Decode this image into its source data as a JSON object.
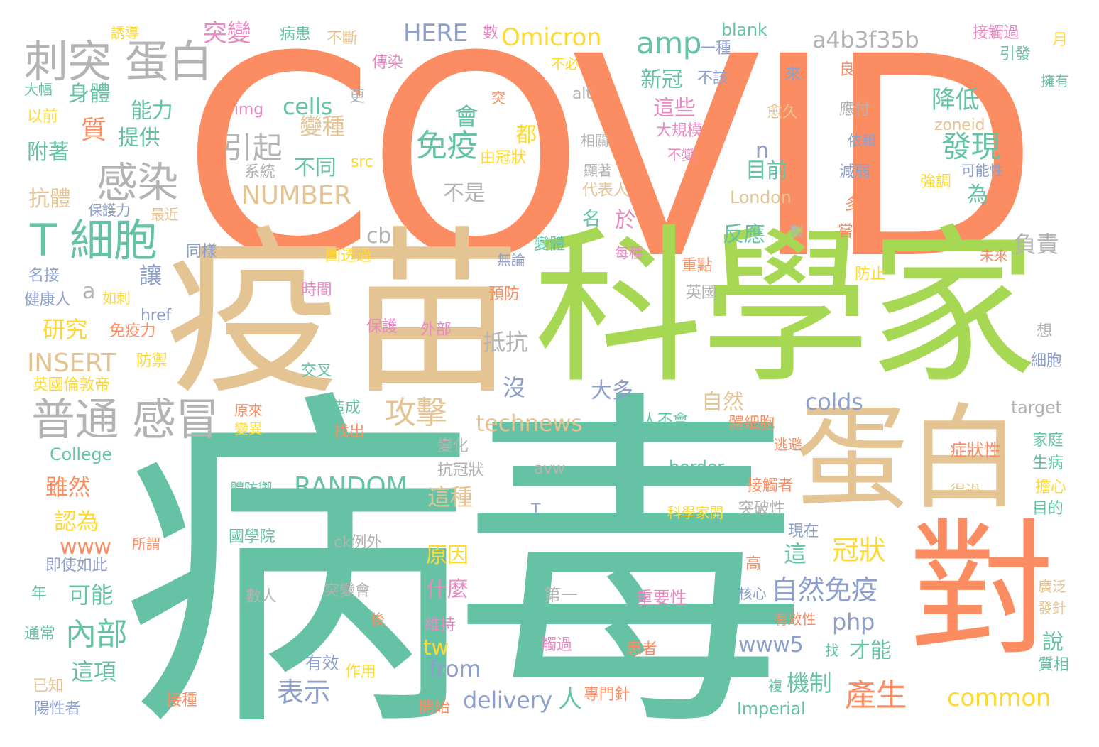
{
  "palette": {
    "orange": "#fc8d62",
    "green": "#66c2a5",
    "lime": "#a6d854",
    "tan": "#e5c494",
    "grey": "#b3b3b3",
    "blue": "#8da0cb",
    "yellow": "#ffd92f",
    "pink": "#e78ac3"
  },
  "words": [
    {
      "t": "COVID",
      "c": "orange"
    },
    {
      "t": "病毒",
      "c": "green"
    },
    {
      "t": "疫苗",
      "c": "tan"
    },
    {
      "t": "科學家",
      "c": "lime"
    },
    {
      "t": "蛋白",
      "c": "tan"
    },
    {
      "t": "對",
      "c": "orange"
    },
    {
      "t": "刺突 蛋白",
      "c": "grey"
    },
    {
      "t": "T 細胞",
      "c": "green"
    },
    {
      "t": "普通 感冒",
      "c": "grey"
    },
    {
      "t": "感染",
      "c": "grey"
    },
    {
      "t": "免疫",
      "c": "green"
    },
    {
      "t": "攻擊",
      "c": "tan"
    },
    {
      "t": "Omicron",
      "c": "yellow"
    },
    {
      "t": "a4b3f35b",
      "c": "grey"
    },
    {
      "t": "amp",
      "c": "green"
    },
    {
      "t": "HERE",
      "c": "blue"
    },
    {
      "t": "突變",
      "c": "pink"
    },
    {
      "t": "RANDOM",
      "c": "green"
    },
    {
      "t": "NUMBER",
      "c": "tan"
    },
    {
      "t": "INSERT",
      "c": "tan"
    },
    {
      "t": "technews",
      "c": "tan"
    },
    {
      "t": "自然免疫",
      "c": "blue"
    },
    {
      "t": "冠狀",
      "c": "yellow"
    },
    {
      "t": "發現",
      "c": "green"
    },
    {
      "t": "降低",
      "c": "green"
    },
    {
      "t": "產生",
      "c": "orange"
    },
    {
      "t": "common",
      "c": "yellow"
    },
    {
      "t": "colds",
      "c": "blue"
    },
    {
      "t": "內部",
      "c": "green"
    },
    {
      "t": "表示",
      "c": "blue"
    },
    {
      "t": "引起",
      "c": "grey"
    },
    {
      "t": "研究",
      "c": "yellow"
    },
    {
      "t": "質",
      "c": "orange"
    },
    {
      "t": "會",
      "c": "green"
    },
    {
      "t": "www5",
      "c": "blue"
    },
    {
      "t": "delivery",
      "c": "blue"
    },
    {
      "t": "from",
      "c": "blue"
    },
    {
      "t": "www",
      "c": "orange"
    },
    {
      "t": "php",
      "c": "blue"
    },
    {
      "t": "抵抗",
      "c": "grey"
    },
    {
      "t": "可能",
      "c": "green"
    },
    {
      "t": "這項",
      "c": "green"
    },
    {
      "t": "反應",
      "c": "green"
    },
    {
      "t": "機制",
      "c": "green"
    },
    {
      "t": "才能",
      "c": "green"
    },
    {
      "t": "不同",
      "c": "green"
    },
    {
      "t": "目前",
      "c": "green"
    },
    {
      "t": "這些",
      "c": "pink"
    },
    {
      "t": "新冠",
      "c": "green"
    },
    {
      "t": "原因",
      "c": "yellow"
    },
    {
      "t": "什麼",
      "c": "pink"
    },
    {
      "t": "大多",
      "c": "blue"
    },
    {
      "t": "認為",
      "c": "yellow"
    },
    {
      "t": "雖然",
      "c": "orange"
    },
    {
      "t": "身體",
      "c": "green"
    },
    {
      "t": "能力",
      "c": "green"
    },
    {
      "t": "提供",
      "c": "green"
    },
    {
      "t": "附著",
      "c": "green"
    },
    {
      "t": "抗體",
      "c": "tan"
    },
    {
      "t": "變種",
      "c": "tan"
    },
    {
      "t": "不是",
      "c": "grey"
    },
    {
      "t": "負責",
      "c": "grey"
    },
    {
      "t": "cells",
      "c": "green"
    },
    {
      "t": "這種",
      "c": "tan"
    },
    {
      "t": "讓",
      "c": "blue"
    },
    {
      "t": "沒",
      "c": "blue"
    },
    {
      "t": "於",
      "c": "pink"
    },
    {
      "t": "為",
      "c": "green"
    },
    {
      "t": "都",
      "c": "yellow"
    },
    {
      "t": "這",
      "c": "green"
    },
    {
      "t": "說",
      "c": "green"
    },
    {
      "t": "自然",
      "c": "tan"
    },
    {
      "t": "a",
      "c": "grey"
    },
    {
      "t": "n",
      "c": "blue"
    },
    {
      "t": "cb",
      "c": "grey"
    },
    {
      "t": "tw",
      "c": "yellow"
    },
    {
      "t": "人",
      "c": "green"
    },
    {
      "t": "名",
      "c": "green"
    },
    {
      "t": "blank",
      "c": "green"
    },
    {
      "t": "一種",
      "c": "blue"
    },
    {
      "t": "不該",
      "c": "blue"
    },
    {
      "t": "來",
      "c": "blue"
    },
    {
      "t": "愈久",
      "c": "tan"
    },
    {
      "t": "大規模",
      "c": "pink"
    },
    {
      "t": "不變",
      "c": "pink"
    },
    {
      "t": "由冠狀",
      "c": "yellow"
    },
    {
      "t": "src",
      "c": "yellow"
    },
    {
      "t": "系統",
      "c": "grey"
    },
    {
      "t": "img",
      "c": "pink"
    },
    {
      "t": "alt",
      "c": "grey"
    },
    {
      "t": "相關",
      "c": "grey"
    },
    {
      "t": "顯著",
      "c": "grey"
    },
    {
      "t": "代表人",
      "c": "tan"
    },
    {
      "t": "London",
      "c": "tan"
    },
    {
      "t": "zoneid",
      "c": "tan"
    },
    {
      "t": "應付",
      "c": "grey"
    },
    {
      "t": "依賴",
      "c": "blue"
    },
    {
      "t": "減弱",
      "c": "blue"
    },
    {
      "t": "強調",
      "c": "yellow"
    },
    {
      "t": "可能性",
      "c": "blue"
    },
    {
      "t": "多個",
      "c": "orange"
    },
    {
      "t": "嘗試",
      "c": "orange"
    },
    {
      "t": "良好",
      "c": "orange"
    },
    {
      "t": "引發",
      "c": "green"
    },
    {
      "t": "擁有",
      "c": "green"
    },
    {
      "t": "月",
      "c": "yellow"
    },
    {
      "t": "接觸過",
      "c": "pink"
    },
    {
      "t": "不斷",
      "c": "tan"
    },
    {
      "t": "病患",
      "c": "green"
    },
    {
      "t": "誘導",
      "c": "yellow"
    },
    {
      "t": "數",
      "c": "pink"
    },
    {
      "t": "不必",
      "c": "yellow"
    },
    {
      "t": "傳染",
      "c": "pink"
    },
    {
      "t": "大幅",
      "c": "green"
    },
    {
      "t": "以前",
      "c": "yellow"
    },
    {
      "t": "更",
      "c": "grey"
    },
    {
      "t": "突",
      "c": "orange"
    },
    {
      "t": "保護力",
      "c": "blue"
    },
    {
      "t": "最近",
      "c": "tan"
    },
    {
      "t": "同樣",
      "c": "blue"
    },
    {
      "t": "名接",
      "c": "blue"
    },
    {
      "t": "健康人",
      "c": "blue"
    },
    {
      "t": "如刺",
      "c": "yellow"
    },
    {
      "t": "免疫力",
      "c": "orange"
    },
    {
      "t": "href",
      "c": "blue"
    },
    {
      "t": "防禦",
      "c": "yellow"
    },
    {
      "t": "英國倫敦帝",
      "c": "yellow"
    },
    {
      "t": "College",
      "c": "green"
    },
    {
      "t": "年",
      "c": "green"
    },
    {
      "t": "即使如此",
      "c": "blue"
    },
    {
      "t": "所謂",
      "c": "orange"
    },
    {
      "t": "通常",
      "c": "green"
    },
    {
      "t": "已知",
      "c": "tan"
    },
    {
      "t": "陽性者",
      "c": "blue"
    },
    {
      "t": "接種",
      "c": "orange"
    },
    {
      "t": "有效",
      "c": "blue"
    },
    {
      "t": "作用",
      "c": "yellow"
    },
    {
      "t": "突變會",
      "c": "grey"
    },
    {
      "t": "數人",
      "c": "grey"
    },
    {
      "t": "後",
      "c": "orange"
    },
    {
      "t": "ck例外",
      "c": "grey"
    },
    {
      "t": "國學院",
      "c": "green"
    },
    {
      "t": "體防禦",
      "c": "green"
    },
    {
      "t": "圖透過",
      "c": "yellow"
    },
    {
      "t": "重點",
      "c": "orange"
    },
    {
      "t": "時間",
      "c": "pink"
    },
    {
      "t": "預防",
      "c": "orange"
    },
    {
      "t": "保護",
      "c": "pink"
    },
    {
      "t": "外部",
      "c": "pink"
    },
    {
      "t": "交叉",
      "c": "green"
    },
    {
      "t": "造成",
      "c": "green"
    },
    {
      "t": "原來",
      "c": "orange"
    },
    {
      "t": "變異",
      "c": "yellow"
    },
    {
      "t": "找出",
      "c": "orange"
    },
    {
      "t": "變化",
      "c": "grey"
    },
    {
      "t": "抗冠狀",
      "c": "grey"
    },
    {
      "t": "avw",
      "c": "grey"
    },
    {
      "t": "T",
      "c": "blue"
    },
    {
      "t": "border",
      "c": "green"
    },
    {
      "t": "接觸者",
      "c": "orange"
    },
    {
      "t": "突破性",
      "c": "grey"
    },
    {
      "t": "科學家開",
      "c": "yellow"
    },
    {
      "t": "現在",
      "c": "blue"
    },
    {
      "t": "高",
      "c": "orange"
    },
    {
      "t": "核心",
      "c": "blue"
    },
    {
      "t": "重要性",
      "c": "pink"
    },
    {
      "t": "第一",
      "c": "grey"
    },
    {
      "t": "有效性",
      "c": "orange"
    },
    {
      "t": "維持",
      "c": "pink"
    },
    {
      "t": "觸過",
      "c": "pink"
    },
    {
      "t": "患者",
      "c": "orange"
    },
    {
      "t": "找",
      "c": "green"
    },
    {
      "t": "複",
      "c": "green"
    },
    {
      "t": "專門針",
      "c": "orange"
    },
    {
      "t": "開始",
      "c": "orange"
    },
    {
      "t": "Imperial",
      "c": "green"
    },
    {
      "t": "症狀性",
      "c": "orange"
    },
    {
      "t": "得過",
      "c": "tan"
    },
    {
      "t": "家庭",
      "c": "green"
    },
    {
      "t": "生病",
      "c": "green"
    },
    {
      "t": "擔心",
      "c": "yellow"
    },
    {
      "t": "目的",
      "c": "green"
    },
    {
      "t": "廣泛",
      "c": "tan"
    },
    {
      "t": "發針",
      "c": "tan"
    },
    {
      "t": "質相",
      "c": "green"
    },
    {
      "t": "target",
      "c": "grey"
    },
    {
      "t": "細胞",
      "c": "blue"
    },
    {
      "t": "想",
      "c": "grey"
    },
    {
      "t": "防止",
      "c": "yellow"
    },
    {
      "t": "未來",
      "c": "orange"
    },
    {
      "t": "英國",
      "c": "grey"
    },
    {
      "t": "變體",
      "c": "green"
    },
    {
      "t": "每種",
      "c": "pink"
    },
    {
      "t": "無論",
      "c": "blue"
    },
    {
      "t": "逃避",
      "c": "orange"
    },
    {
      "t": "人不會",
      "c": "green"
    },
    {
      "t": "體細胞",
      "c": "orange"
    },
    {
      "t": "製",
      "c": "grey"
    }
  ]
}
